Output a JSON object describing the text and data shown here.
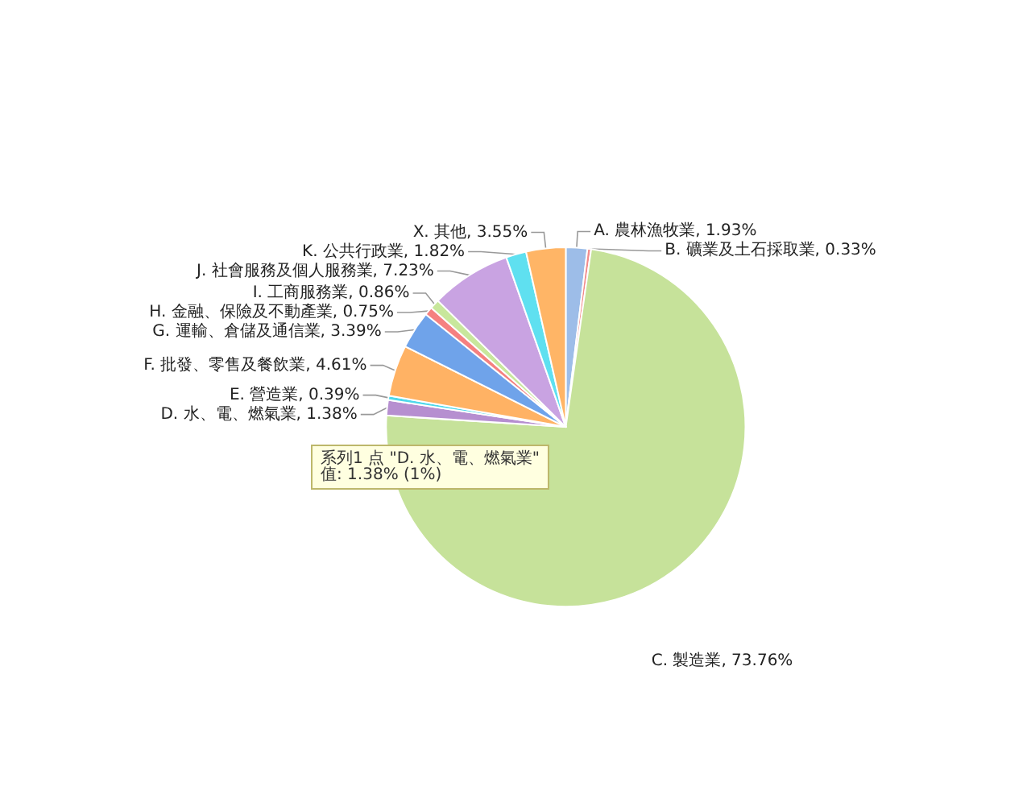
{
  "chart_data": {
    "type": "pie",
    "categories": [
      "A. 農林漁牧業",
      "B. 礦業及土石採取業",
      "C. 製造業",
      "D. 水、電、燃氣業",
      "E. 營造業",
      "F. 批發、零售及餐飲業",
      "G. 運輸、倉儲及通信業",
      "H. 金融、保險及不動產業",
      "I. 工商服務業",
      "J. 社會服務及個人服務業",
      "K. 公共行政業",
      "X. 其他"
    ],
    "values": [
      1.93,
      0.33,
      73.76,
      1.38,
      0.39,
      4.61,
      3.39,
      0.75,
      0.86,
      7.23,
      1.82,
      3.55
    ],
    "value_labels": [
      "1.93%",
      "0.33%",
      "73.76%",
      "1.38%",
      "0.39%",
      "4.61%",
      "3.39%",
      "0.75%",
      "0.86%",
      "7.23%",
      "1.82%",
      "3.55%"
    ],
    "colors": [
      "#9dbde8",
      "#f28b8b",
      "#c6e29a",
      "#b68fd0",
      "#4fd8ea",
      "#ffb264",
      "#6fa3ea",
      "#f58080",
      "#c8e79c",
      "#c9a3e2",
      "#5fe0f0",
      "#ffb566"
    ],
    "legend": false,
    "annotations": [
      "系列1 点 \"D. 水、電、燃氣業\"\n值: 1.38% (1%)"
    ]
  }
}
